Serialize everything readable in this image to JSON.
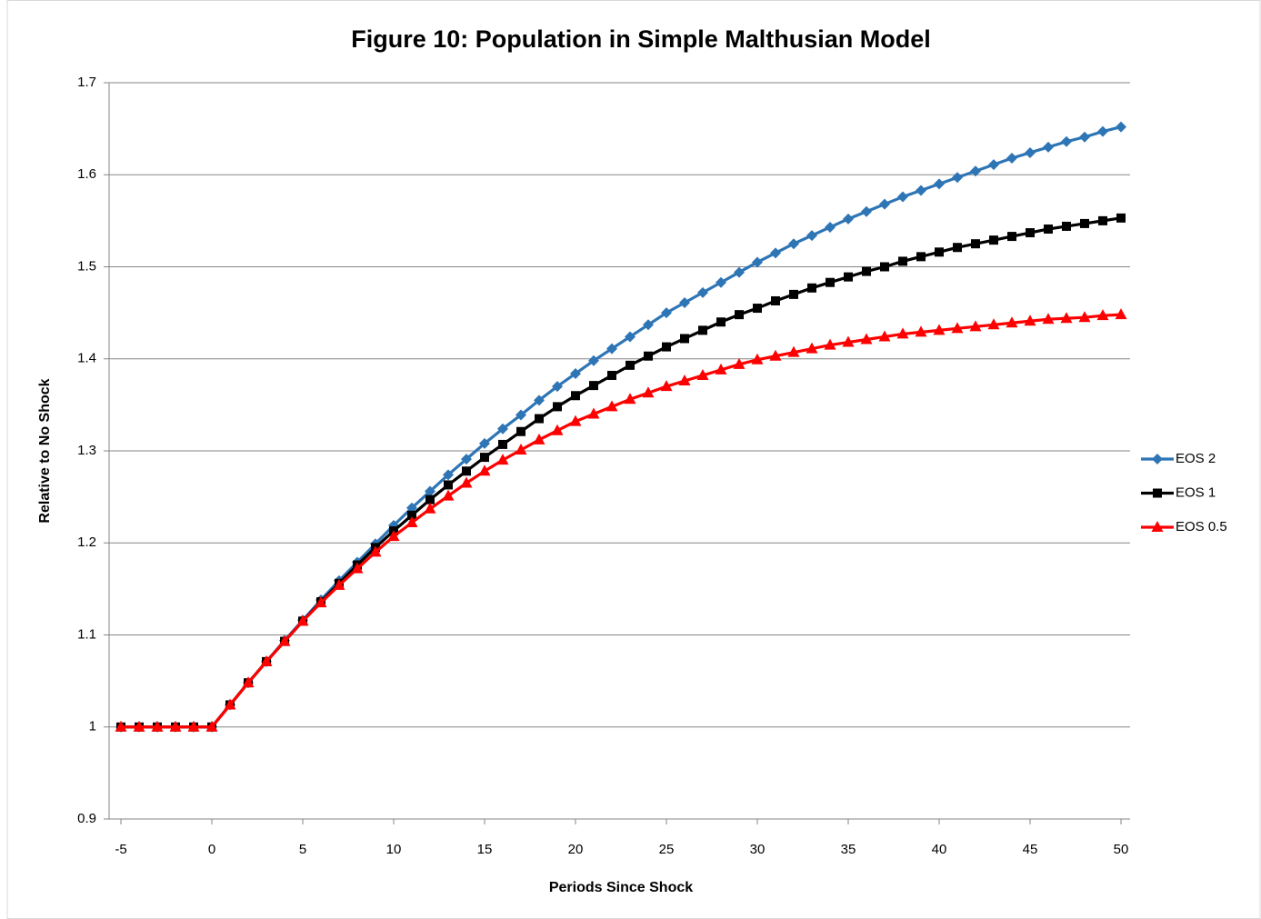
{
  "chart_data": {
    "type": "line",
    "title": "Figure 10:  Population in Simple Malthusian Model",
    "x_label": "Periods Since Shock",
    "y_label": "Relative to No Shock",
    "x": [
      -5,
      -4,
      -3,
      -2,
      -1,
      0,
      1,
      2,
      3,
      4,
      5,
      6,
      7,
      8,
      9,
      10,
      11,
      12,
      13,
      14,
      15,
      16,
      17,
      18,
      19,
      20,
      21,
      22,
      23,
      24,
      25,
      26,
      27,
      28,
      29,
      30,
      31,
      32,
      33,
      34,
      35,
      36,
      37,
      38,
      39,
      40,
      41,
      42,
      43,
      44,
      45,
      46,
      47,
      48,
      49,
      50
    ],
    "series": [
      {
        "name": "EOS 2",
        "color": "#2e75b6",
        "marker": "diamond",
        "values": [
          1,
          1,
          1,
          1,
          1,
          1,
          1.024,
          1.048,
          1.071,
          1.094,
          1.116,
          1.138,
          1.159,
          1.179,
          1.199,
          1.219,
          1.238,
          1.256,
          1.274,
          1.291,
          1.308,
          1.324,
          1.339,
          1.355,
          1.37,
          1.384,
          1.398,
          1.411,
          1.424,
          1.437,
          1.45,
          1.461,
          1.472,
          1.483,
          1.494,
          1.505,
          1.515,
          1.525,
          1.534,
          1.543,
          1.552,
          1.56,
          1.568,
          1.576,
          1.583,
          1.59,
          1.597,
          1.604,
          1.611,
          1.618,
          1.624,
          1.63,
          1.636,
          1.641,
          1.647,
          1.652
        ]
      },
      {
        "name": "EOS 1",
        "color": "#000000",
        "marker": "square",
        "values": [
          1,
          1,
          1,
          1,
          1,
          1,
          1.024,
          1.048,
          1.071,
          1.093,
          1.115,
          1.136,
          1.156,
          1.176,
          1.195,
          1.213,
          1.23,
          1.247,
          1.263,
          1.278,
          1.293,
          1.307,
          1.321,
          1.335,
          1.348,
          1.36,
          1.371,
          1.382,
          1.393,
          1.403,
          1.413,
          1.422,
          1.431,
          1.44,
          1.448,
          1.455,
          1.463,
          1.47,
          1.477,
          1.483,
          1.489,
          1.495,
          1.5,
          1.506,
          1.511,
          1.516,
          1.521,
          1.525,
          1.529,
          1.533,
          1.537,
          1.541,
          1.544,
          1.547,
          1.55,
          1.553
        ]
      },
      {
        "name": "EOS 0.5",
        "color": "#ff0000",
        "marker": "triangle",
        "values": [
          1,
          1,
          1,
          1,
          1,
          1,
          1.024,
          1.048,
          1.071,
          1.093,
          1.115,
          1.135,
          1.154,
          1.172,
          1.19,
          1.207,
          1.222,
          1.237,
          1.251,
          1.265,
          1.278,
          1.29,
          1.301,
          1.312,
          1.322,
          1.332,
          1.34,
          1.348,
          1.356,
          1.363,
          1.37,
          1.376,
          1.382,
          1.388,
          1.394,
          1.399,
          1.403,
          1.407,
          1.411,
          1.415,
          1.418,
          1.421,
          1.424,
          1.427,
          1.429,
          1.431,
          1.433,
          1.435,
          1.437,
          1.439,
          1.441,
          1.443,
          1.444,
          1.445,
          1.447,
          1.448
        ]
      }
    ],
    "xlim": [
      -5.65,
      50.5
    ],
    "xticks": [
      -5,
      0,
      5,
      10,
      15,
      20,
      25,
      30,
      35,
      40,
      45,
      50
    ],
    "ylim": [
      0.9,
      1.7
    ],
    "yticks": [
      0.9,
      1,
      1.1,
      1.2,
      1.3,
      1.4,
      1.5,
      1.6,
      1.7
    ],
    "grid": true,
    "legend": "right"
  }
}
